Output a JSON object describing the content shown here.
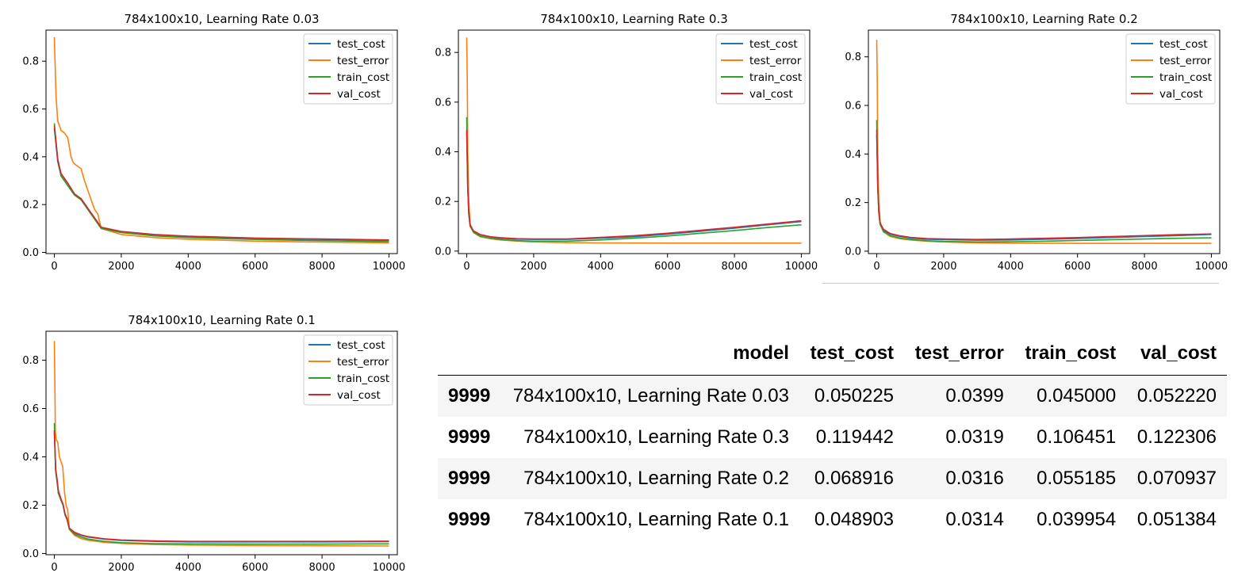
{
  "chart_data": [
    {
      "type": "line",
      "title": "784x100x10, Learning Rate 0.03",
      "xlabel": "",
      "ylabel": "",
      "xlim": [
        -250,
        10250
      ],
      "ylim": [
        -0.005,
        0.93
      ],
      "xticks": [
        "0",
        "2000",
        "4000",
        "6000",
        "8000",
        "10000"
      ],
      "yticks": [
        "0.0",
        "0.2",
        "0.4",
        "0.6",
        "0.8"
      ],
      "legend_position": "top-right",
      "grid": false,
      "series": [
        {
          "name": "test_cost",
          "color": "#1f77b4",
          "x": [
            0,
            100,
            200,
            400,
            600,
            800,
            1000,
            1200,
            1400,
            2000,
            3000,
            4000,
            6000,
            8000,
            10000
          ],
          "y": [
            0.52,
            0.38,
            0.32,
            0.28,
            0.24,
            0.22,
            0.18,
            0.14,
            0.1,
            0.085,
            0.073,
            0.066,
            0.058,
            0.054,
            0.05
          ]
        },
        {
          "name": "test_error",
          "color": "#ff7f0e",
          "x": [
            0,
            50,
            100,
            200,
            300,
            400,
            500,
            550,
            600,
            800,
            900,
            950,
            1000,
            1200,
            1300,
            1400,
            2000,
            3000,
            4000,
            6000,
            8000,
            10000
          ],
          "y": [
            0.9,
            0.65,
            0.55,
            0.51,
            0.5,
            0.48,
            0.4,
            0.38,
            0.37,
            0.35,
            0.3,
            0.28,
            0.26,
            0.18,
            0.16,
            0.1,
            0.075,
            0.062,
            0.055,
            0.047,
            0.043,
            0.04
          ]
        },
        {
          "name": "train_cost",
          "color": "#2ca02c",
          "x": [
            0,
            100,
            200,
            400,
            600,
            800,
            1000,
            1200,
            1400,
            2000,
            3000,
            4000,
            6000,
            8000,
            10000
          ],
          "y": [
            0.54,
            0.39,
            0.32,
            0.28,
            0.24,
            0.22,
            0.18,
            0.14,
            0.1,
            0.083,
            0.069,
            0.062,
            0.054,
            0.049,
            0.045
          ]
        },
        {
          "name": "val_cost",
          "color": "#d62728",
          "x": [
            0,
            100,
            200,
            400,
            600,
            800,
            1000,
            1200,
            1400,
            2000,
            3000,
            4000,
            6000,
            8000,
            10000
          ],
          "y": [
            0.53,
            0.39,
            0.33,
            0.29,
            0.245,
            0.225,
            0.185,
            0.145,
            0.105,
            0.088,
            0.075,
            0.068,
            0.06,
            0.056,
            0.052
          ]
        }
      ]
    },
    {
      "type": "line",
      "title": "784x100x10, Learning Rate 0.3",
      "xlabel": "",
      "ylabel": "",
      "xlim": [
        -250,
        10250
      ],
      "ylim": [
        -0.01,
        0.89
      ],
      "xticks": [
        "0",
        "2000",
        "4000",
        "6000",
        "8000",
        "10000"
      ],
      "yticks": [
        "0.0",
        "0.2",
        "0.4",
        "0.6",
        "0.8"
      ],
      "legend_position": "top-right",
      "grid": false,
      "series": [
        {
          "name": "test_cost",
          "color": "#1f77b4",
          "x": [
            0,
            30,
            60,
            100,
            200,
            400,
            700,
            1000,
            1500,
            2000,
            3000,
            4000,
            5000,
            6000,
            7000,
            8000,
            9000,
            10000
          ],
          "y": [
            0.48,
            0.25,
            0.15,
            0.1,
            0.08,
            0.065,
            0.057,
            0.052,
            0.048,
            0.047,
            0.047,
            0.052,
            0.058,
            0.068,
            0.08,
            0.092,
            0.106,
            0.119
          ]
        },
        {
          "name": "test_error",
          "color": "#ff7f0e",
          "x": [
            0,
            15,
            30,
            60,
            100,
            200,
            400,
            700,
            1000,
            1500,
            2000,
            3000,
            4000,
            6000,
            8000,
            10000
          ],
          "y": [
            0.86,
            0.7,
            0.4,
            0.2,
            0.11,
            0.075,
            0.058,
            0.05,
            0.045,
            0.04,
            0.037,
            0.034,
            0.033,
            0.032,
            0.032,
            0.032
          ]
        },
        {
          "name": "train_cost",
          "color": "#2ca02c",
          "x": [
            0,
            30,
            60,
            100,
            200,
            400,
            700,
            1000,
            1500,
            2000,
            3000,
            4000,
            5000,
            6000,
            7000,
            8000,
            9000,
            10000
          ],
          "y": [
            0.54,
            0.26,
            0.15,
            0.1,
            0.076,
            0.06,
            0.052,
            0.047,
            0.042,
            0.04,
            0.04,
            0.045,
            0.052,
            0.061,
            0.072,
            0.083,
            0.095,
            0.106
          ]
        },
        {
          "name": "val_cost",
          "color": "#d62728",
          "x": [
            0,
            30,
            60,
            100,
            200,
            400,
            700,
            1000,
            1500,
            2000,
            3000,
            4000,
            5000,
            6000,
            7000,
            8000,
            9000,
            10000
          ],
          "y": [
            0.49,
            0.26,
            0.16,
            0.105,
            0.082,
            0.067,
            0.058,
            0.054,
            0.05,
            0.049,
            0.049,
            0.055,
            0.062,
            0.072,
            0.084,
            0.096,
            0.109,
            0.122
          ]
        }
      ]
    },
    {
      "type": "line",
      "title": "784x100x10, Learning Rate 0.2",
      "xlabel": "",
      "ylabel": "",
      "xlim": [
        -250,
        10250
      ],
      "ylim": [
        -0.01,
        0.91
      ],
      "xticks": [
        "0",
        "2000",
        "4000",
        "6000",
        "8000",
        "10000"
      ],
      "yticks": [
        "0.0",
        "0.2",
        "0.4",
        "0.6",
        "0.8"
      ],
      "legend_position": "top-right",
      "grid": false,
      "series": [
        {
          "name": "test_cost",
          "color": "#1f77b4",
          "x": [
            0,
            30,
            60,
            100,
            200,
            400,
            700,
            1000,
            1500,
            2000,
            3000,
            4000,
            5000,
            6000,
            7000,
            8000,
            9000,
            10000
          ],
          "y": [
            0.48,
            0.26,
            0.16,
            0.11,
            0.085,
            0.07,
            0.06,
            0.054,
            0.049,
            0.047,
            0.045,
            0.046,
            0.049,
            0.052,
            0.056,
            0.06,
            0.064,
            0.069
          ]
        },
        {
          "name": "test_error",
          "color": "#ff7f0e",
          "x": [
            0,
            15,
            30,
            60,
            100,
            200,
            400,
            700,
            1000,
            1500,
            2000,
            3000,
            4000,
            6000,
            8000,
            10000
          ],
          "y": [
            0.87,
            0.7,
            0.4,
            0.2,
            0.12,
            0.08,
            0.06,
            0.051,
            0.046,
            0.041,
            0.038,
            0.034,
            0.033,
            0.032,
            0.032,
            0.032
          ]
        },
        {
          "name": "train_cost",
          "color": "#2ca02c",
          "x": [
            0,
            30,
            60,
            100,
            200,
            400,
            700,
            1000,
            1500,
            2000,
            3000,
            4000,
            5000,
            6000,
            7000,
            8000,
            9000,
            10000
          ],
          "y": [
            0.54,
            0.27,
            0.16,
            0.11,
            0.08,
            0.064,
            0.054,
            0.048,
            0.043,
            0.04,
            0.038,
            0.039,
            0.041,
            0.044,
            0.047,
            0.05,
            0.053,
            0.055
          ]
        },
        {
          "name": "val_cost",
          "color": "#d62728",
          "x": [
            0,
            30,
            60,
            100,
            200,
            400,
            700,
            1000,
            1500,
            2000,
            3000,
            4000,
            5000,
            6000,
            7000,
            8000,
            9000,
            10000
          ],
          "y": [
            0.5,
            0.27,
            0.17,
            0.115,
            0.09,
            0.073,
            0.063,
            0.057,
            0.052,
            0.05,
            0.048,
            0.05,
            0.053,
            0.056,
            0.06,
            0.064,
            0.068,
            0.071
          ]
        }
      ]
    },
    {
      "type": "line",
      "title": "784x100x10, Learning Rate 0.1",
      "xlabel": "",
      "ylabel": "",
      "xlim": [
        -250,
        10250
      ],
      "ylim": [
        -0.005,
        0.92
      ],
      "xticks": [
        "0",
        "2000",
        "4000",
        "6000",
        "8000",
        "10000"
      ],
      "yticks": [
        "0.0",
        "0.2",
        "0.4",
        "0.6",
        "0.8"
      ],
      "legend_position": "top-right",
      "grid": false,
      "series": [
        {
          "name": "test_cost",
          "color": "#1f77b4",
          "x": [
            0,
            40,
            80,
            120,
            200,
            260,
            320,
            380,
            450,
            600,
            800,
            1000,
            1500,
            2000,
            3000,
            4000,
            6000,
            8000,
            10000
          ],
          "y": [
            0.5,
            0.34,
            0.3,
            0.25,
            0.22,
            0.2,
            0.16,
            0.14,
            0.1,
            0.085,
            0.075,
            0.068,
            0.059,
            0.054,
            0.05,
            0.048,
            0.048,
            0.048,
            0.049
          ]
        },
        {
          "name": "test_error",
          "color": "#ff7f0e",
          "x": [
            0,
            15,
            30,
            60,
            100,
            150,
            200,
            250,
            300,
            350,
            400,
            450,
            600,
            800,
            1000,
            1500,
            2000,
            3000,
            4000,
            6000,
            8000,
            10000
          ],
          "y": [
            0.88,
            0.7,
            0.5,
            0.47,
            0.46,
            0.4,
            0.38,
            0.36,
            0.26,
            0.2,
            0.18,
            0.1,
            0.075,
            0.062,
            0.055,
            0.046,
            0.042,
            0.037,
            0.035,
            0.033,
            0.032,
            0.031
          ]
        },
        {
          "name": "train_cost",
          "color": "#2ca02c",
          "x": [
            0,
            40,
            80,
            120,
            200,
            260,
            320,
            380,
            450,
            600,
            800,
            1000,
            1500,
            2000,
            3000,
            4000,
            6000,
            8000,
            10000
          ],
          "y": [
            0.54,
            0.34,
            0.3,
            0.25,
            0.22,
            0.2,
            0.16,
            0.14,
            0.1,
            0.08,
            0.068,
            0.06,
            0.05,
            0.045,
            0.041,
            0.04,
            0.039,
            0.039,
            0.04
          ]
        },
        {
          "name": "val_cost",
          "color": "#d62728",
          "x": [
            0,
            40,
            80,
            120,
            200,
            260,
            320,
            380,
            450,
            600,
            800,
            1000,
            1500,
            2000,
            3000,
            4000,
            6000,
            8000,
            10000
          ],
          "y": [
            0.51,
            0.35,
            0.31,
            0.26,
            0.225,
            0.205,
            0.165,
            0.145,
            0.105,
            0.088,
            0.077,
            0.07,
            0.061,
            0.056,
            0.052,
            0.05,
            0.05,
            0.05,
            0.051
          ]
        }
      ]
    }
  ],
  "results_table": {
    "columns": [
      "",
      "model",
      "test_cost",
      "test_error",
      "train_cost",
      "val_cost"
    ],
    "rows": [
      [
        "9999",
        "784x100x10, Learning Rate 0.03",
        "0.050225",
        "0.0399",
        "0.045000",
        "0.052220"
      ],
      [
        "9999",
        "784x100x10, Learning Rate 0.3",
        "0.119442",
        "0.0319",
        "0.106451",
        "0.122306"
      ],
      [
        "9999",
        "784x100x10, Learning Rate 0.2",
        "0.068916",
        "0.0316",
        "0.055185",
        "0.070937"
      ],
      [
        "9999",
        "784x100x10, Learning Rate 0.1",
        "0.048903",
        "0.0314",
        "0.039954",
        "0.051384"
      ]
    ]
  }
}
